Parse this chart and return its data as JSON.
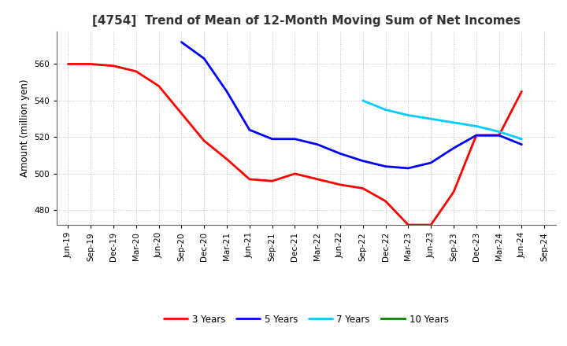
{
  "title": "[4754]  Trend of Mean of 12-Month Moving Sum of Net Incomes",
  "ylabel": "Amount (million yen)",
  "ylim": [
    472,
    578
  ],
  "yticks": [
    480,
    500,
    520,
    540,
    560
  ],
  "background_color": "#ffffff",
  "grid_color": "#aaaaaa",
  "series": {
    "3 Years": {
      "color": "#ff0000",
      "x": [
        "Jun-19",
        "Sep-19",
        "Dec-19",
        "Mar-20",
        "Jun-20",
        "Sep-20",
        "Dec-20",
        "Mar-21",
        "Jun-21",
        "Sep-21",
        "Dec-21",
        "Mar-22",
        "Jun-22",
        "Sep-22",
        "Dec-22",
        "Mar-23",
        "Jun-23",
        "Sep-23",
        "Dec-23",
        "Mar-24",
        "Jun-24"
      ],
      "y": [
        560,
        560,
        559,
        556,
        548,
        533,
        518,
        508,
        497,
        496,
        500,
        497,
        494,
        492,
        485,
        472,
        472,
        490,
        521,
        521,
        545
      ]
    },
    "5 Years": {
      "color": "#0000ff",
      "x": [
        "Sep-20",
        "Dec-20",
        "Mar-21",
        "Jun-21",
        "Sep-21",
        "Dec-21",
        "Mar-22",
        "Jun-22",
        "Sep-22",
        "Dec-22",
        "Mar-23",
        "Jun-23",
        "Sep-23",
        "Dec-23",
        "Mar-24",
        "Jun-24"
      ],
      "y": [
        572,
        563,
        545,
        524,
        519,
        519,
        516,
        511,
        507,
        504,
        503,
        506,
        514,
        521,
        521,
        516
      ]
    },
    "7 Years": {
      "color": "#00ccff",
      "x": [
        "Sep-22",
        "Dec-22",
        "Mar-23",
        "Jun-23",
        "Sep-23",
        "Dec-23",
        "Mar-24",
        "Jun-24"
      ],
      "y": [
        540,
        535,
        532,
        530,
        528,
        526,
        523,
        519
      ]
    },
    "10 Years": {
      "color": "#008000",
      "x": [],
      "y": []
    }
  },
  "x_labels": [
    "Jun-19",
    "Sep-19",
    "Dec-19",
    "Mar-20",
    "Jun-20",
    "Sep-20",
    "Dec-20",
    "Mar-21",
    "Jun-21",
    "Sep-21",
    "Dec-21",
    "Mar-22",
    "Jun-22",
    "Sep-22",
    "Dec-22",
    "Mar-23",
    "Jun-23",
    "Sep-23",
    "Dec-23",
    "Mar-24",
    "Jun-24",
    "Sep-24"
  ],
  "linewidth": 2.0,
  "title_fontsize": 11,
  "tick_fontsize": 7.5,
  "ylabel_fontsize": 8.5,
  "legend_fontsize": 8.5
}
